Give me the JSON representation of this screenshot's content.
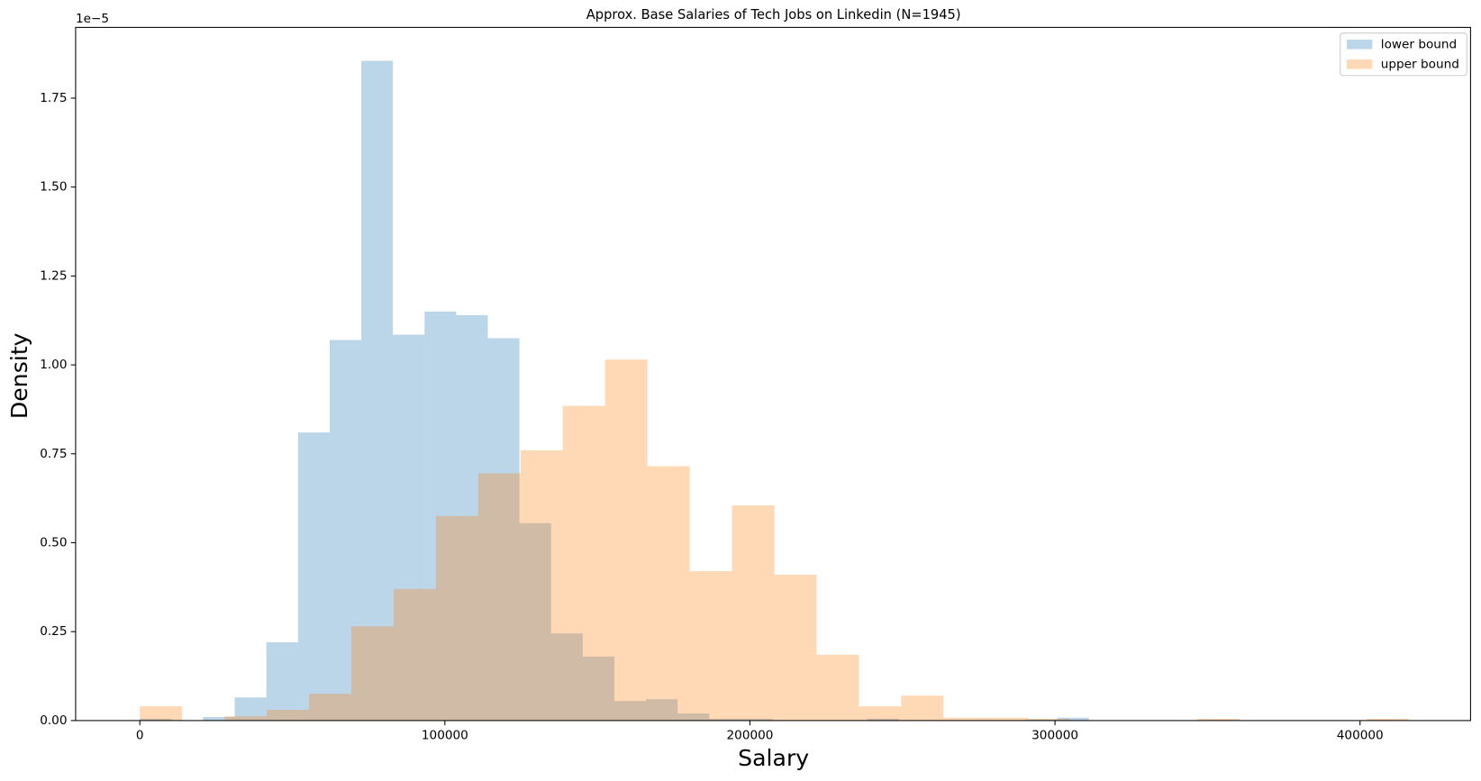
{
  "chart_data": {
    "type": "histogram",
    "title": "Approx. Base Salaries of Tech Jobs on Linkedin (N=1945)",
    "xlabel": "Salary",
    "ylabel": "Density",
    "y_offset_label": "1e−5",
    "xlim": [
      -21053,
      436223
    ],
    "ylim": [
      0,
      1.949
    ],
    "xticks": [
      0,
      100000,
      200000,
      300000,
      400000
    ],
    "yticks": [
      {
        "value": 0,
        "label": "0.00"
      },
      {
        "value": 0.25,
        "label": "0.25"
      },
      {
        "value": 0.5,
        "label": "0.50"
      },
      {
        "value": 0.75,
        "label": "0.75"
      },
      {
        "value": 1,
        "label": "1.00"
      },
      {
        "value": 1.25,
        "label": "1.25"
      },
      {
        "value": 1.5,
        "label": "1.50"
      },
      {
        "value": 1.75,
        "label": "1.75"
      }
    ],
    "legend": "upper right",
    "series": [
      {
        "name": "lower bound",
        "color": "#1f77b4",
        "opacity": 0.3,
        "bins": [
          0,
          10370,
          20740,
          31110,
          41480,
          51850,
          62220,
          72590,
          82960,
          93330,
          103700,
          114070,
          124440,
          134810,
          145180,
          155550,
          165920,
          176290,
          186660,
          197030,
          207400,
          217770,
          228140,
          238510,
          248880,
          259250,
          269620,
          279990,
          290360,
          300730,
          311100
        ],
        "values": [
          0.005,
          0,
          0.01,
          0.065,
          0.22,
          0.81,
          1.07,
          1.855,
          1.085,
          1.15,
          1.14,
          1.075,
          0.555,
          0.245,
          0.18,
          0.055,
          0.06,
          0.02,
          0.005,
          0.005,
          0,
          0,
          0,
          0.005,
          0,
          0,
          0,
          0,
          0.003,
          0.008
        ]
      },
      {
        "name": "upper bound",
        "color": "#ff7f0e",
        "opacity": 0.3,
        "bins": [
          0,
          13866,
          27732,
          41598,
          55464,
          69330,
          83196,
          97062,
          110928,
          124794,
          138660,
          152526,
          166392,
          180258,
          194124,
          207990,
          221856,
          235722,
          249588,
          263454,
          277320,
          291186,
          305052,
          318918,
          332784,
          346650,
          360516,
          374382,
          388248,
          402114,
          415980
        ],
        "values": [
          0.04,
          0,
          0.012,
          0.03,
          0.075,
          0.265,
          0.37,
          0.575,
          0.695,
          0.76,
          0.885,
          1.015,
          0.715,
          0.42,
          0.605,
          0.41,
          0.185,
          0.04,
          0.07,
          0.008,
          0.008,
          0.005,
          0,
          0,
          0,
          0.005,
          0,
          0,
          0,
          0.005
        ]
      }
    ]
  }
}
